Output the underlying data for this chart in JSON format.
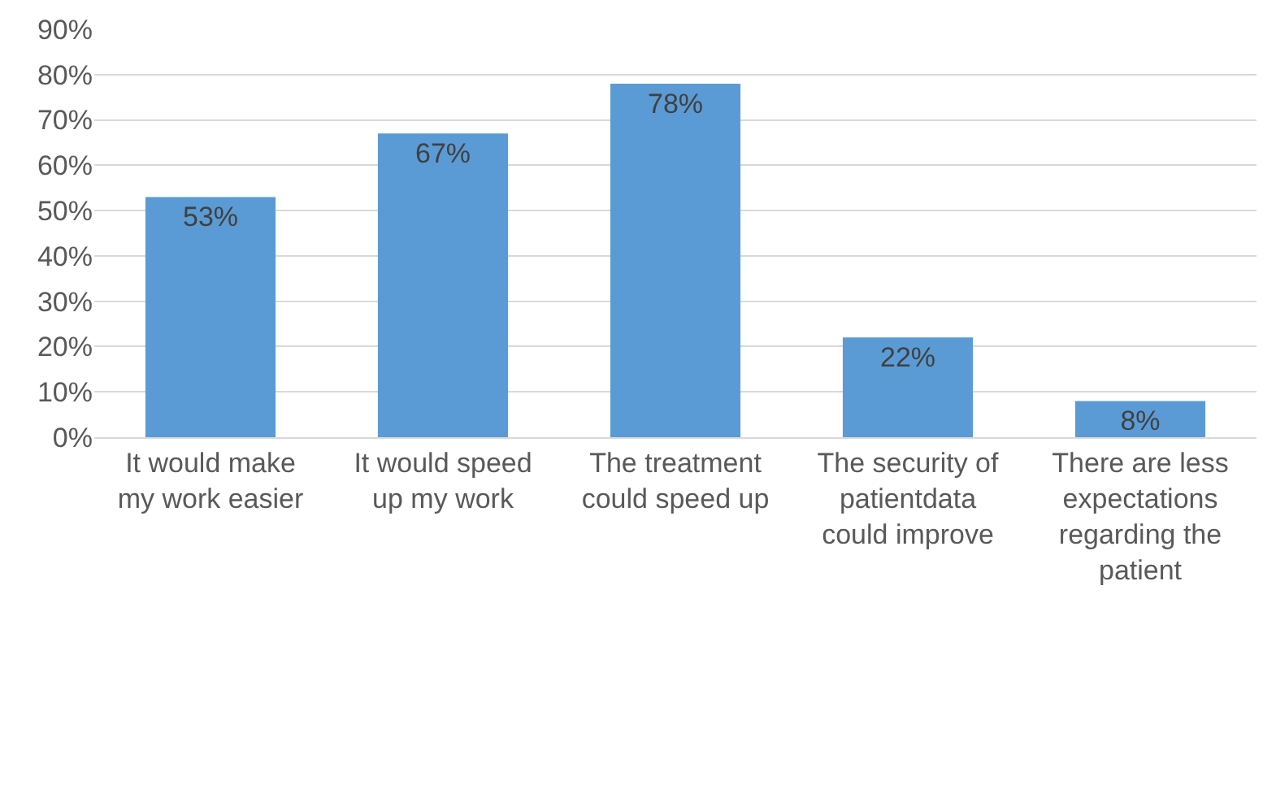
{
  "chart_data": {
    "type": "bar",
    "categories": [
      "It would make my work easier",
      "It would speed up my work",
      "The treatment could speed up",
      "The security of patientdata could improve",
      "There are less expectations regarding the patient"
    ],
    "values": [
      53,
      67,
      78,
      22,
      8
    ],
    "value_labels": [
      "53%",
      "67%",
      "78%",
      "22%",
      "8%"
    ],
    "color": "#5b9bd5",
    "ylim": [
      0,
      90
    ],
    "yticks": [
      {
        "value": 0,
        "label": "0%"
      },
      {
        "value": 10,
        "label": "10%"
      },
      {
        "value": 20,
        "label": "20%"
      },
      {
        "value": 30,
        "label": "30%"
      },
      {
        "value": 40,
        "label": "40%"
      },
      {
        "value": 50,
        "label": "50%"
      },
      {
        "value": 60,
        "label": "60%"
      },
      {
        "value": 70,
        "label": "70%"
      },
      {
        "value": 80,
        "label": "80%"
      },
      {
        "value": 90,
        "label": "90%"
      }
    ],
    "grid": "y"
  }
}
